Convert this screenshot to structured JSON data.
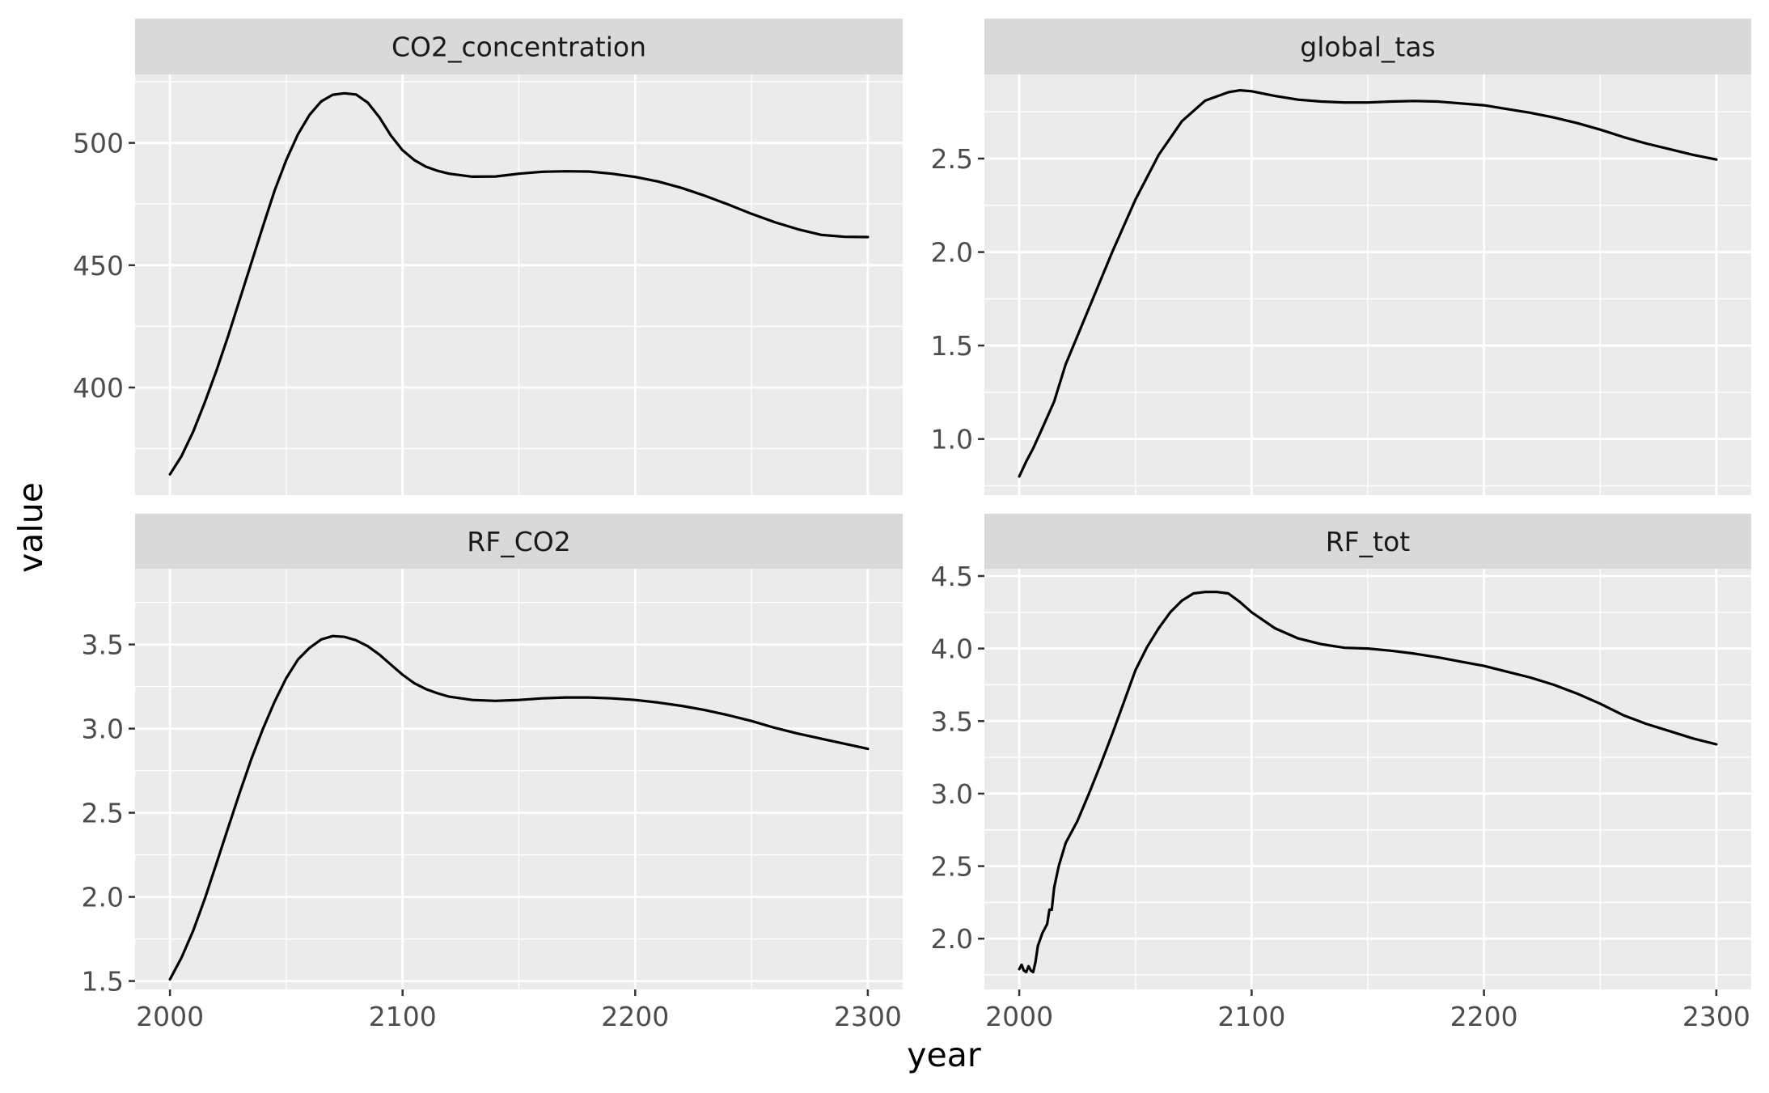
{
  "chart_data": {
    "type": "line",
    "layout": "facet_wrap",
    "facet_columns": 2,
    "shared_x_axis": true,
    "xlabel": "year",
    "ylabel": "value",
    "grid": true,
    "panel_background": "#ebebeb",
    "strip_background": "#d9d9d9",
    "grid_color": "#ffffff",
    "line_color": "#000000",
    "xlim": [
      1985,
      2315
    ],
    "x_ticks": [
      2000,
      2100,
      2200,
      2300
    ],
    "x_tick_labels": [
      "2000",
      "2100",
      "2200",
      "2300"
    ],
    "panels": [
      {
        "title": "CO2_concentration",
        "ylim": [
          356,
          528
        ],
        "y_ticks": [
          400,
          450,
          500
        ],
        "y_tick_labels": [
          "400",
          "450",
          "500"
        ],
        "x": [
          2000,
          2005,
          2010,
          2015,
          2020,
          2025,
          2030,
          2035,
          2040,
          2045,
          2050,
          2055,
          2060,
          2065,
          2070,
          2075,
          2080,
          2085,
          2090,
          2095,
          2100,
          2105,
          2110,
          2115,
          2120,
          2130,
          2140,
          2150,
          2160,
          2170,
          2180,
          2190,
          2200,
          2210,
          2220,
          2230,
          2240,
          2250,
          2260,
          2270,
          2280,
          2290,
          2300
        ],
        "y": [
          364.5,
          372,
          382,
          394,
          407,
          421,
          436,
          451,
          466,
          480.5,
          493,
          503.5,
          511.5,
          517,
          519.7,
          520.3,
          519.8,
          516.5,
          510.5,
          503,
          497,
          493,
          490.3,
          488.6,
          487.4,
          486.2,
          486.3,
          487.4,
          488.2,
          488.4,
          488.3,
          487.4,
          486.1,
          484.2,
          481.6,
          478.4,
          474.8,
          471,
          467.6,
          464.7,
          462.4,
          461.6,
          461.5
        ]
      },
      {
        "title": "global_tas",
        "ylim": [
          0.7,
          2.95
        ],
        "y_ticks": [
          1.0,
          1.5,
          2.0,
          2.5
        ],
        "y_tick_labels": [
          "1.0",
          "1.5",
          "2.0",
          "2.5"
        ],
        "x": [
          2000,
          2003,
          2006,
          2010,
          2015,
          2020,
          2025,
          2030,
          2040,
          2050,
          2060,
          2070,
          2080,
          2090,
          2095,
          2100,
          2110,
          2120,
          2130,
          2140,
          2150,
          2160,
          2170,
          2180,
          2190,
          2200,
          2210,
          2220,
          2230,
          2240,
          2250,
          2260,
          2270,
          2280,
          2290,
          2300
        ],
        "y": [
          0.8,
          0.88,
          0.95,
          1.06,
          1.2,
          1.4,
          1.55,
          1.7,
          2.0,
          2.28,
          2.52,
          2.7,
          2.81,
          2.855,
          2.865,
          2.86,
          2.835,
          2.815,
          2.805,
          2.8,
          2.8,
          2.805,
          2.808,
          2.805,
          2.795,
          2.785,
          2.765,
          2.745,
          2.72,
          2.69,
          2.655,
          2.615,
          2.58,
          2.55,
          2.52,
          2.495
        ]
      },
      {
        "title": "RF_CO2",
        "ylim": [
          1.45,
          3.95
        ],
        "y_ticks": [
          1.5,
          2.0,
          2.5,
          3.0,
          3.5
        ],
        "y_tick_labels": [
          "1.5",
          "2.0",
          "2.5",
          "3.0",
          "3.5"
        ],
        "x": [
          2000,
          2005,
          2010,
          2015,
          2020,
          2025,
          2030,
          2035,
          2040,
          2045,
          2050,
          2055,
          2060,
          2065,
          2070,
          2075,
          2080,
          2085,
          2090,
          2095,
          2100,
          2105,
          2110,
          2115,
          2120,
          2130,
          2140,
          2150,
          2160,
          2170,
          2180,
          2190,
          2200,
          2210,
          2220,
          2230,
          2240,
          2250,
          2260,
          2270,
          2280,
          2290,
          2300
        ],
        "y": [
          1.51,
          1.64,
          1.8,
          1.99,
          2.2,
          2.41,
          2.62,
          2.82,
          3.0,
          3.16,
          3.3,
          3.41,
          3.48,
          3.53,
          3.55,
          3.545,
          3.525,
          3.49,
          3.44,
          3.38,
          3.32,
          3.27,
          3.235,
          3.21,
          3.19,
          3.17,
          3.165,
          3.17,
          3.18,
          3.185,
          3.185,
          3.18,
          3.17,
          3.155,
          3.135,
          3.11,
          3.08,
          3.045,
          3.005,
          2.97,
          2.94,
          2.91,
          2.88
        ]
      },
      {
        "title": "RF_tot",
        "ylim": [
          1.65,
          4.55
        ],
        "y_ticks": [
          2.0,
          2.5,
          3.0,
          3.5,
          4.0,
          4.5
        ],
        "y_tick_labels": [
          "2.0",
          "2.5",
          "3.0",
          "3.5",
          "4.0",
          "4.5"
        ],
        "x": [
          2000,
          2001,
          2002,
          2003,
          2004,
          2005,
          2006,
          2007,
          2008,
          2010,
          2012,
          2013,
          2014,
          2015,
          2017,
          2020,
          2022,
          2025,
          2030,
          2035,
          2040,
          2045,
          2050,
          2055,
          2060,
          2065,
          2070,
          2075,
          2080,
          2085,
          2090,
          2095,
          2100,
          2110,
          2120,
          2130,
          2140,
          2150,
          2160,
          2170,
          2180,
          2190,
          2200,
          2210,
          2220,
          2230,
          2240,
          2250,
          2260,
          2270,
          2280,
          2290,
          2300
        ],
        "y": [
          1.79,
          1.82,
          1.78,
          1.77,
          1.81,
          1.78,
          1.77,
          1.84,
          1.95,
          2.04,
          2.1,
          2.2,
          2.2,
          2.35,
          2.5,
          2.66,
          2.72,
          2.81,
          3.0,
          3.2,
          3.41,
          3.63,
          3.85,
          4.01,
          4.14,
          4.25,
          4.33,
          4.38,
          4.39,
          4.39,
          4.38,
          4.32,
          4.25,
          4.14,
          4.07,
          4.03,
          4.005,
          4.0,
          3.985,
          3.965,
          3.94,
          3.91,
          3.88,
          3.84,
          3.8,
          3.75,
          3.69,
          3.62,
          3.54,
          3.48,
          3.43,
          3.38,
          3.34
        ]
      }
    ]
  }
}
